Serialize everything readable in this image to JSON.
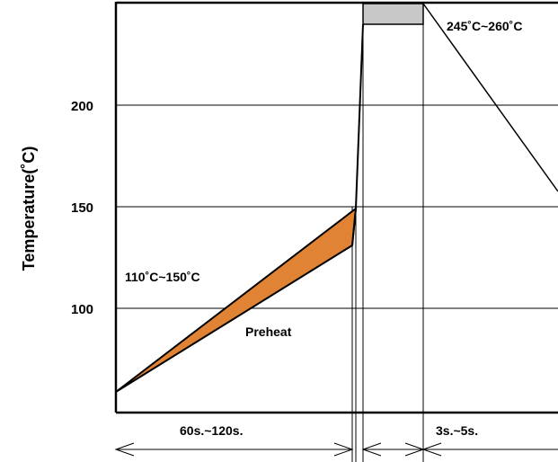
{
  "chart_data": {
    "type": "area",
    "title": "",
    "xlabel": "",
    "ylabel": "Temperature(˚C)",
    "y_ticks": [
      "100",
      "150",
      "200"
    ],
    "ylim": [
      50,
      250
    ],
    "grid": "horizontal",
    "series": [
      {
        "name": "Preheat",
        "x_seconds_start": 0,
        "y_start": 60,
        "y_lower_end": 131,
        "y_upper_end": 150,
        "color": "#e08334"
      },
      {
        "name": "245˚C~260˚C",
        "y_range": [
          245,
          260
        ],
        "color": "#c8c8c8"
      }
    ],
    "annotations": {
      "preheat_range": "110˚C~150˚C",
      "preheat_label": "Preheat",
      "peak_range": "245˚C~260˚C",
      "preheat_time": "60s.~120s.",
      "peak_time": "3s.~5s."
    }
  }
}
